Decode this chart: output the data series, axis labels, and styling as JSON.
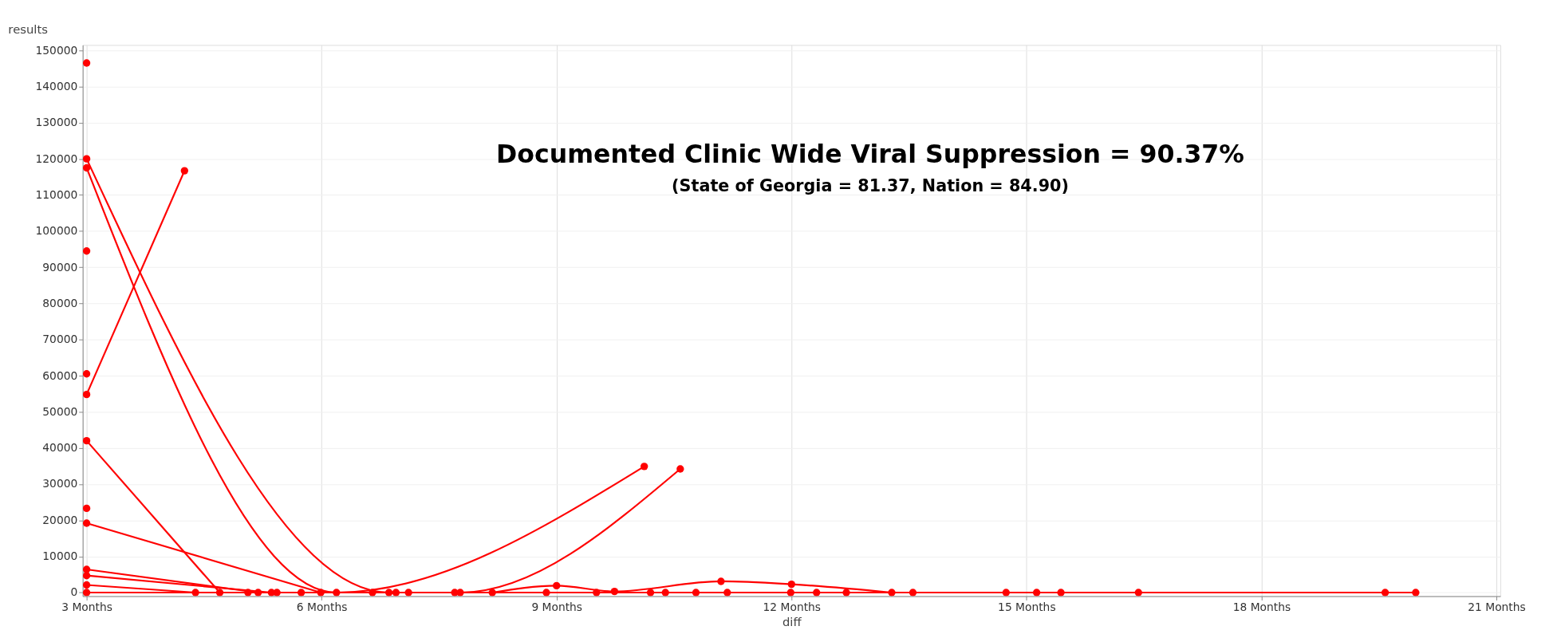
{
  "chart_data": {
    "type": "line",
    "title": "Documented Clinic Wide Viral Suppression = 90.37%",
    "subtitle": "(State of Georgia = 81.37, Nation = 84.90)",
    "xlabel": "diff",
    "ylabel": "results",
    "xlim": [
      2.95,
      21.05
    ],
    "xticks": [
      {
        "value": 3,
        "label": "3 Months"
      },
      {
        "value": 6,
        "label": "6 Months"
      },
      {
        "value": 9,
        "label": "9 Months"
      },
      {
        "value": 12,
        "label": "12 Months"
      },
      {
        "value": 15,
        "label": "15 Months"
      },
      {
        "value": 18,
        "label": "18 Months"
      },
      {
        "value": 21,
        "label": "21 Months"
      }
    ],
    "ylim": [
      -1000,
      151500
    ],
    "yticks": [
      0,
      10000,
      20000,
      30000,
      40000,
      50000,
      60000,
      70000,
      80000,
      90000,
      100000,
      110000,
      120000,
      130000,
      140000,
      150000
    ],
    "grid": true,
    "marker": "circle",
    "line_style": "solid",
    "legend": false,
    "series": [
      {
        "color": "#ff0000",
        "x": [
          3,
          4.25
        ],
        "values": [
          54800,
          116700
        ]
      },
      {
        "color": "#ff0000",
        "x": [
          3,
          6.86,
          7.77,
          10.58
        ],
        "values": [
          120000,
          0,
          0,
          34200
        ]
      },
      {
        "color": "#ff0000",
        "x": [
          3,
          6.19,
          10.12
        ],
        "values": [
          117500,
          0,
          34900
        ]
      },
      {
        "color": "#ff0000",
        "x": [
          3,
          4.7
        ],
        "values": [
          42000,
          0
        ]
      },
      {
        "color": "#ff0000",
        "x": [
          3,
          5.99
        ],
        "values": [
          19200,
          0
        ]
      },
      {
        "color": "#ff0000",
        "x": [
          3,
          5.19
        ],
        "values": [
          6400,
          0
        ]
      },
      {
        "color": "#ff0000",
        "x": [
          3,
          5.36
        ],
        "values": [
          4700,
          0
        ]
      },
      {
        "color": "#ff0000",
        "x": [
          3,
          4.39
        ],
        "values": [
          2100,
          0
        ]
      },
      {
        "color": "#ff0000",
        "x": [
          8.18,
          9.0,
          9.74,
          11.1,
          12.0,
          13.28
        ],
        "values": [
          0,
          1900,
          300,
          3100,
          2300,
          0
        ]
      },
      {
        "color": "#ff0000",
        "x": [
          3,
          5.06,
          5.43,
          5.74,
          6.65,
          6.95,
          7.11,
          7.7,
          8.87,
          9.51,
          10.2,
          10.39,
          10.78,
          11.18,
          11.99,
          12.32,
          12.7,
          13.55,
          14.74,
          15.13,
          15.44,
          16.43,
          19.58,
          19.97
        ],
        "values": [
          0,
          0,
          0,
          0,
          0,
          0,
          0,
          0,
          0,
          0,
          0,
          0,
          0,
          0,
          0,
          0,
          0,
          0,
          0,
          0,
          0,
          0,
          0,
          0
        ]
      },
      {
        "color": "#ff0000",
        "x": [
          3
        ],
        "values": [
          146500
        ]
      },
      {
        "color": "#ff0000",
        "x": [
          3
        ],
        "values": [
          94500
        ]
      },
      {
        "color": "#ff0000",
        "x": [
          3
        ],
        "values": [
          60500
        ]
      },
      {
        "color": "#ff0000",
        "x": [
          3
        ],
        "values": [
          23300
        ]
      }
    ]
  }
}
